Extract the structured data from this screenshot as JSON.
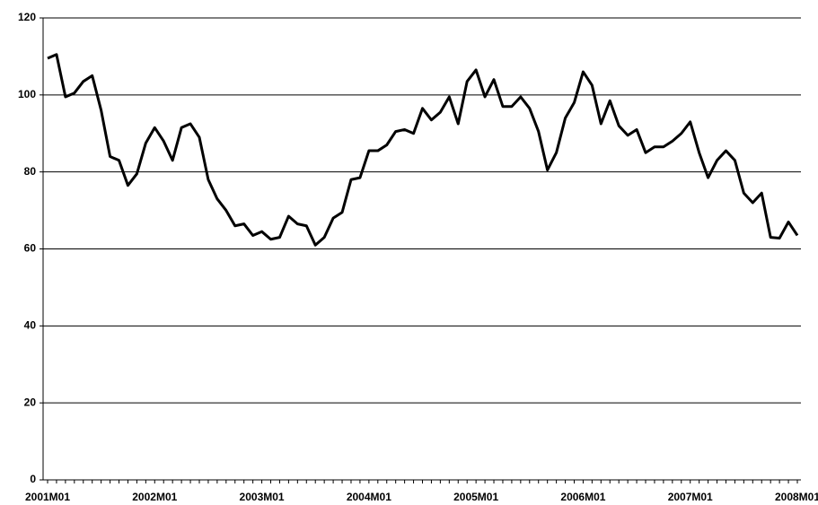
{
  "chart_data": {
    "type": "line",
    "categories": [
      "2001M01",
      null,
      null,
      null,
      null,
      null,
      null,
      null,
      null,
      null,
      null,
      null,
      "2002M01",
      null,
      null,
      null,
      null,
      null,
      null,
      null,
      null,
      null,
      null,
      null,
      "2003M01",
      null,
      null,
      null,
      null,
      null,
      null,
      null,
      null,
      null,
      null,
      null,
      "2004M01",
      null,
      null,
      null,
      null,
      null,
      null,
      null,
      null,
      null,
      null,
      null,
      "2005M01",
      null,
      null,
      null,
      null,
      null,
      null,
      null,
      null,
      null,
      null,
      null,
      "2006M01",
      null,
      null,
      null,
      null,
      null,
      null,
      null,
      null,
      null,
      null,
      null,
      "2007M01",
      null,
      null,
      null,
      null,
      null,
      null,
      null,
      null,
      null,
      null,
      null,
      "2008M01"
    ],
    "values": [
      109.5,
      110.5,
      99.5,
      100.5,
      103.5,
      105,
      96,
      84,
      83,
      76.5,
      79.5,
      87.5,
      91.5,
      88,
      83,
      91.5,
      92.5,
      89,
      78,
      73,
      70,
      66,
      66.5,
      63.5,
      64.5,
      62.5,
      63,
      68.5,
      66.5,
      66,
      61,
      63,
      68,
      69.5,
      78,
      78.5,
      85.5,
      85.5,
      87,
      90.5,
      91,
      90,
      96.5,
      93.5,
      95.5,
      99.5,
      92.5,
      103.5,
      106.5,
      99.5,
      104,
      97,
      97,
      99.5,
      96.5,
      90.5,
      80.5,
      85,
      94,
      98,
      106,
      102.5,
      92.5,
      98.5,
      92,
      89.5,
      91,
      85,
      86.5,
      86.5,
      88,
      90,
      93,
      85,
      78.5,
      83,
      85.5,
      83,
      74.5,
      72,
      74.5,
      63,
      62.8,
      67,
      63.5
    ],
    "color": "#000000",
    "ylim": [
      0,
      120
    ],
    "yticks": [
      0,
      20,
      40,
      60,
      80,
      100,
      120
    ],
    "grid": true
  }
}
